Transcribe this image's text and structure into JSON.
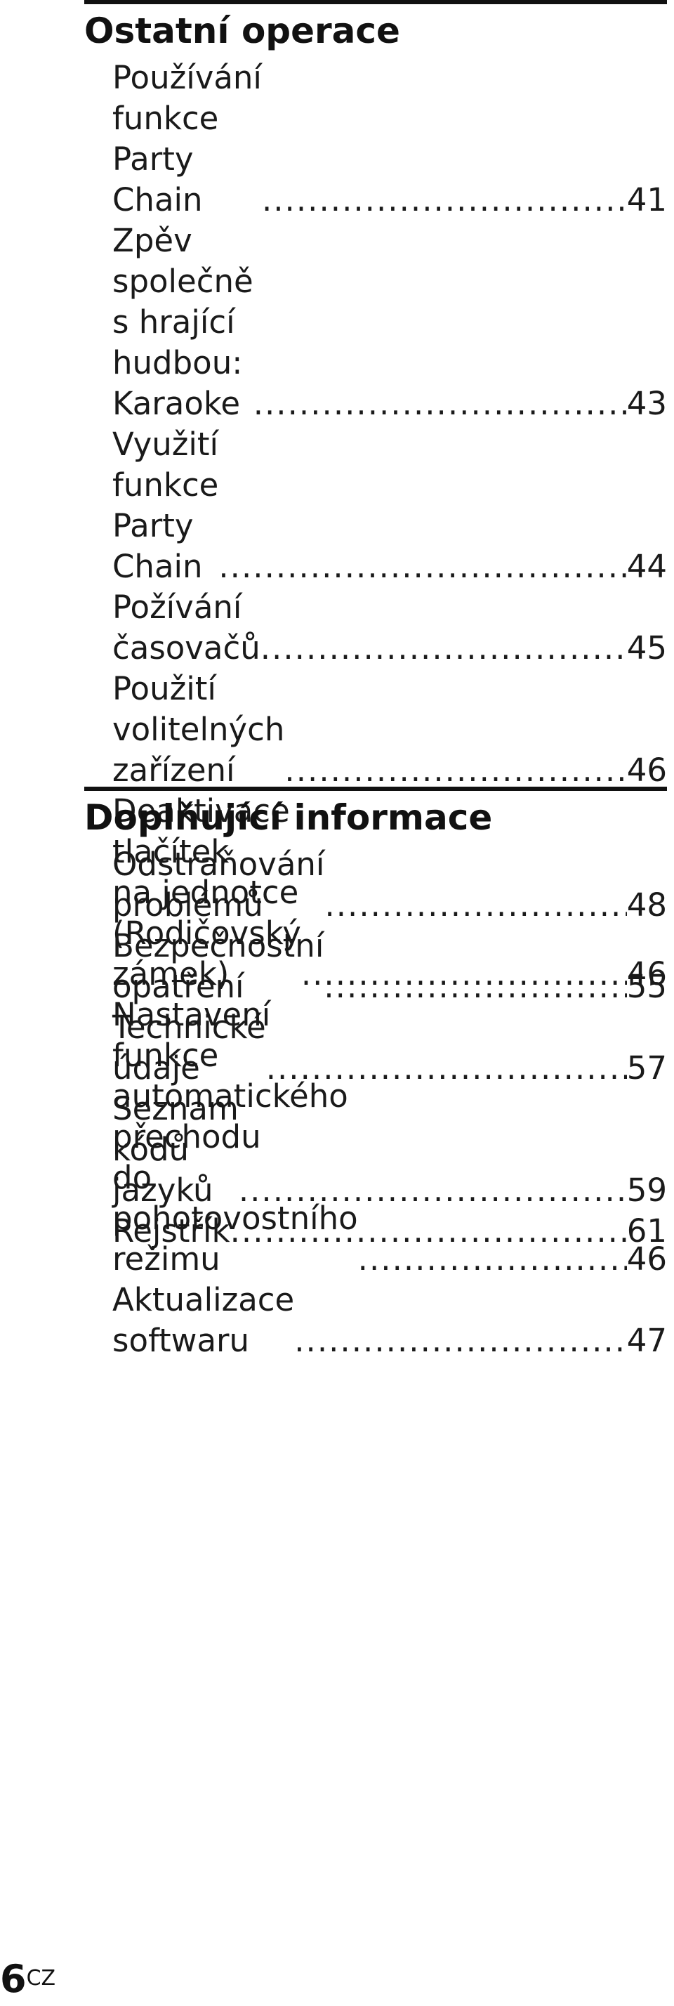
{
  "sections": [
    {
      "title": "Ostatní operace",
      "entries": [
        {
          "title": "Používání funkce\nParty Chain",
          "page": "41"
        },
        {
          "title": "Zpěv společně s hrající\nhudbou: Karaoke",
          "page": "43"
        },
        {
          "title": "Využití funkce Party Chain",
          "page": "44"
        },
        {
          "title": "Požívání časovačů",
          "page": "45"
        },
        {
          "title": "Použití volitelných zařízení",
          "page": "46"
        },
        {
          "title": "Deaktivace tlačítek\nna jednotce (Rodičovský\nzámek)",
          "page": "46"
        },
        {
          "title": "Nastavení funkce\nautomatického přechodu\ndo pohotovostního režimu",
          "page": "46"
        },
        {
          "title": "Aktualizace softwaru",
          "page": "47"
        }
      ]
    },
    {
      "title": "Doplňující informace",
      "entries": [
        {
          "title": "Odstraňování problémů",
          "page": "48"
        },
        {
          "title": "Bezpečnostní opatření",
          "page": "55"
        },
        {
          "title": "Technické údaje",
          "page": "57"
        },
        {
          "title": "Seznam kódů jazyků",
          "page": "59"
        },
        {
          "title": "Rejstřík",
          "page": "61"
        }
      ]
    }
  ],
  "footer": {
    "page": "6",
    "lang": "CZ"
  }
}
